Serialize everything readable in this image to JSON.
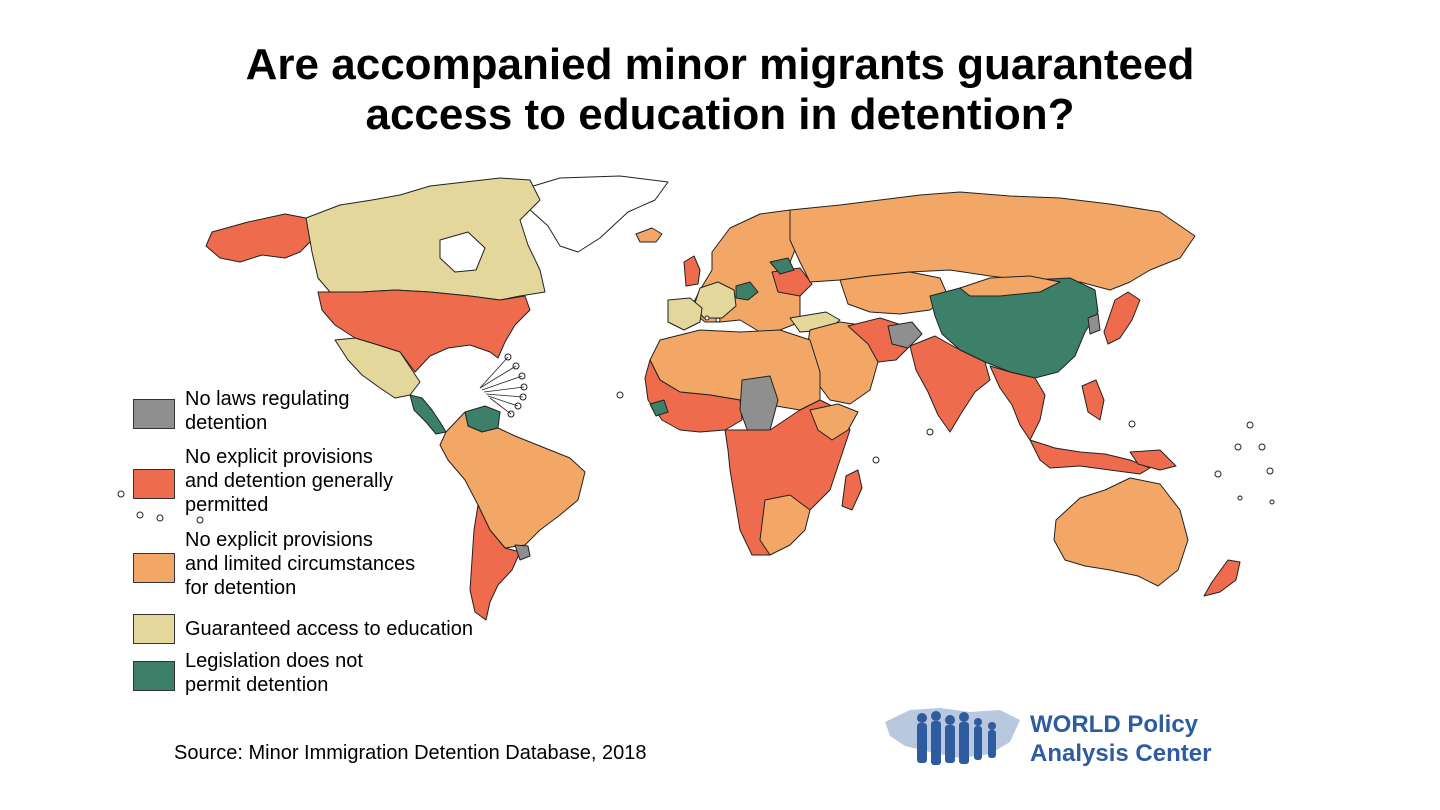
{
  "title": {
    "line1": "Are accompanied minor migrants guaranteed",
    "line2": "access to education in detention?"
  },
  "legend": [
    {
      "lines": [
        "No laws regulating",
        "detention"
      ],
      "color": "#8f8f8f"
    },
    {
      "lines": [
        "No explicit provisions",
        "and detention generally",
        "permitted"
      ],
      "color": "#ee6b4d"
    },
    {
      "lines": [
        "No explicit provisions",
        "and limited circumstances",
        "for detention"
      ],
      "color": "#f2a766"
    },
    {
      "lines": [
        "Guaranteed access to education"
      ],
      "color": "#e3d79b"
    },
    {
      "lines": [
        "Legislation does not",
        "permit detention"
      ],
      "color": "#3d8069"
    }
  ],
  "source": "Source: Minor Immigration Detention Database, 2018",
  "logo": {
    "line1": "WORLD Policy",
    "line2": "Analysis Center",
    "color": "#2e5c9e"
  }
}
